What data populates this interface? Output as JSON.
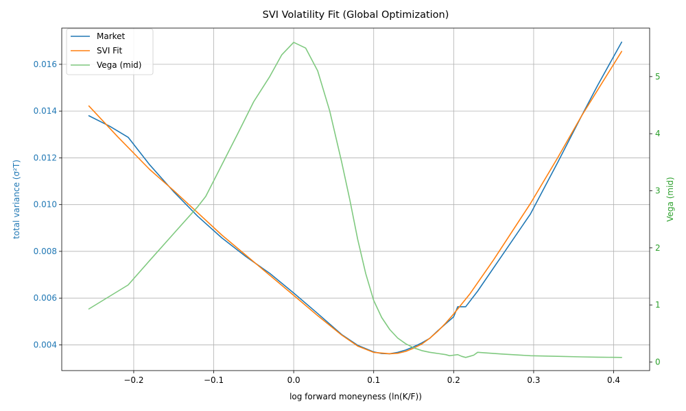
{
  "chart_data": {
    "type": "line",
    "title": "SVI Volatility Fit (Global Optimization)",
    "xlabel": "log forward moneyness (ln(K/F))",
    "ylabel_left": "total variance (σ²T)",
    "ylabel_right": "Vega (mid)",
    "xlim": [
      -0.29,
      0.445
    ],
    "ylim_left": [
      0.0029,
      0.01755
    ],
    "ylim_right": [
      -0.15,
      5.85
    ],
    "x_ticks": [
      -0.2,
      -0.1,
      0.0,
      0.1,
      0.2,
      0.3,
      0.4
    ],
    "x_tick_labels": [
      "−0.2",
      "−0.1",
      "0.0",
      "0.1",
      "0.2",
      "0.3",
      "0.4"
    ],
    "y_left_ticks": [
      0.004,
      0.006,
      0.008,
      0.01,
      0.012,
      0.014,
      0.016
    ],
    "y_left_tick_labels": [
      "0.004",
      "0.006",
      "0.008",
      "0.010",
      "0.012",
      "0.014",
      "0.016"
    ],
    "y_right_ticks": [
      0,
      1,
      2,
      3,
      4,
      5
    ],
    "y_right_tick_labels": [
      "0",
      "1",
      "2",
      "3",
      "4",
      "5"
    ],
    "grid": true,
    "legend_position": "top-left",
    "colors": {
      "market": "#1f77b4",
      "svi": "#ff7f0e",
      "vega": "#7fc97f",
      "left_axis": "#1f77b4",
      "right_axis": "#2ca02c"
    },
    "series": [
      {
        "name": "Market",
        "axis": "left",
        "x": [
          -0.256,
          -0.23,
          -0.207,
          -0.18,
          -0.15,
          -0.12,
          -0.09,
          -0.06,
          -0.03,
          0.0,
          0.03,
          0.06,
          0.08,
          0.1,
          0.11,
          0.12,
          0.13,
          0.14,
          0.15,
          0.16,
          0.17,
          0.18,
          0.19,
          0.2,
          0.205,
          0.21,
          0.215,
          0.23,
          0.26,
          0.296,
          0.33,
          0.36,
          0.38,
          0.41
        ],
        "y": [
          0.0138,
          0.01335,
          0.01288,
          0.0117,
          0.01055,
          0.0095,
          0.00858,
          0.00778,
          0.00706,
          0.00622,
          0.00534,
          0.00444,
          0.00398,
          0.0037,
          0.00363,
          0.00362,
          0.00368,
          0.00378,
          0.00392,
          0.00408,
          0.00428,
          0.0046,
          0.0049,
          0.0052,
          0.00563,
          0.00563,
          0.00563,
          0.0063,
          0.0078,
          0.0096,
          0.0118,
          0.0138,
          0.0151,
          0.01695
        ]
      },
      {
        "name": "SVI Fit",
        "axis": "left",
        "x": [
          -0.256,
          -0.22,
          -0.18,
          -0.15,
          -0.12,
          -0.09,
          -0.06,
          -0.03,
          0.0,
          0.03,
          0.06,
          0.08,
          0.1,
          0.12,
          0.13,
          0.14,
          0.15,
          0.16,
          0.17,
          0.18,
          0.19,
          0.2,
          0.22,
          0.25,
          0.296,
          0.33,
          0.36,
          0.38,
          0.41
        ],
        "y": [
          0.01422,
          0.0129,
          0.0115,
          0.0106,
          0.00965,
          0.0087,
          0.00784,
          0.00698,
          0.00612,
          0.00525,
          0.00442,
          0.00395,
          0.00368,
          0.00362,
          0.00364,
          0.00372,
          0.00386,
          0.00403,
          0.00428,
          0.00458,
          0.00493,
          0.00532,
          0.00617,
          0.00764,
          0.01005,
          0.012,
          0.0138,
          0.0149,
          0.01655
        ]
      },
      {
        "name": "Vega (mid)",
        "axis": "right",
        "x": [
          -0.256,
          -0.207,
          -0.18,
          -0.15,
          -0.12,
          -0.11,
          -0.09,
          -0.07,
          -0.05,
          -0.03,
          -0.015,
          0.0,
          0.015,
          0.03,
          0.045,
          0.06,
          0.07,
          0.08,
          0.09,
          0.1,
          0.11,
          0.12,
          0.13,
          0.14,
          0.15,
          0.16,
          0.17,
          0.18,
          0.19,
          0.195,
          0.2,
          0.205,
          0.21,
          0.215,
          0.22,
          0.225,
          0.23,
          0.26,
          0.296,
          0.33,
          0.36,
          0.38,
          0.41
        ],
        "y": [
          0.93,
          1.35,
          1.78,
          2.25,
          2.72,
          2.9,
          3.45,
          4.0,
          4.56,
          5.0,
          5.38,
          5.6,
          5.5,
          5.1,
          4.4,
          3.5,
          2.85,
          2.15,
          1.55,
          1.08,
          0.78,
          0.57,
          0.42,
          0.32,
          0.25,
          0.2,
          0.17,
          0.15,
          0.13,
          0.11,
          0.12,
          0.13,
          0.1,
          0.08,
          0.1,
          0.12,
          0.17,
          0.14,
          0.11,
          0.1,
          0.09,
          0.085,
          0.08
        ]
      }
    ]
  }
}
